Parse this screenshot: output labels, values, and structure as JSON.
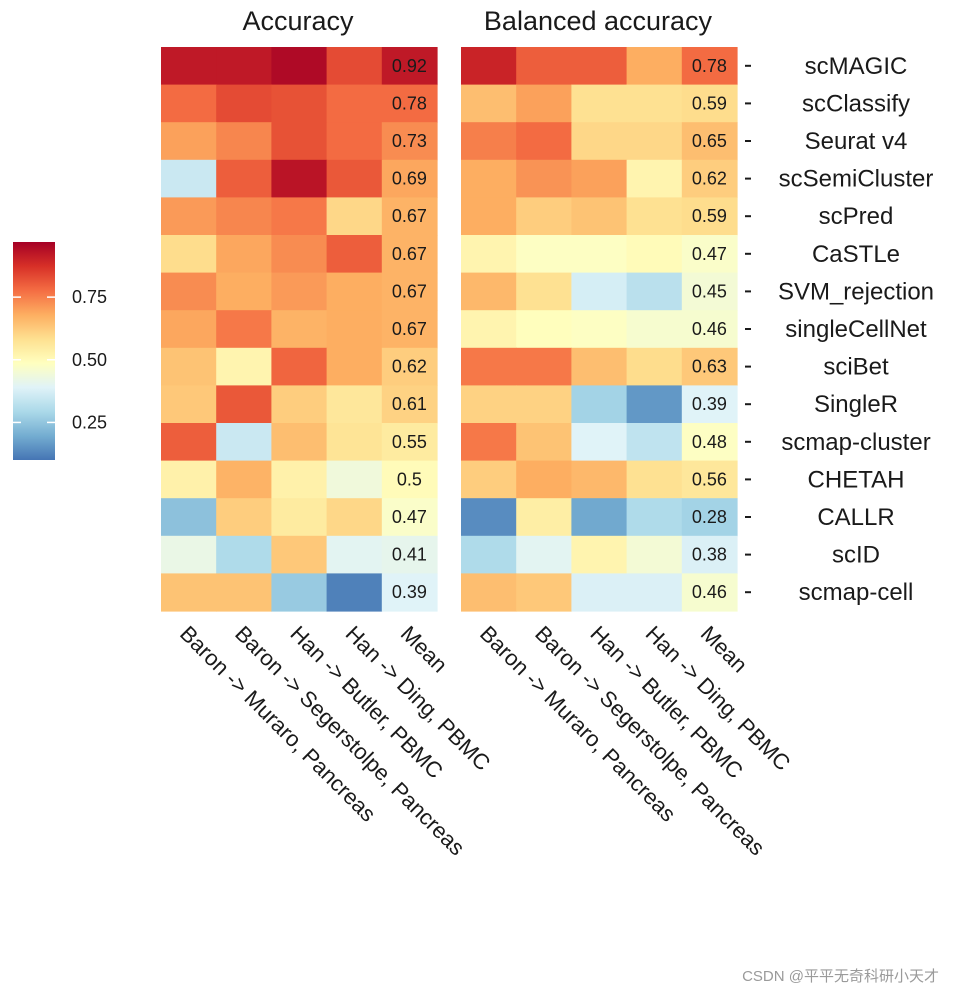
{
  "chart_data": {
    "type": "heatmap",
    "panels": [
      {
        "title": "Accuracy",
        "columns": [
          "Baron -> Muraro, Pancreas",
          "Baron -> Segerstolpe, Pancreas",
          "Han -> Butler, PBMC",
          "Han -> Ding, PBMC",
          "Mean"
        ],
        "values": [
          [
            0.92,
            0.92,
            0.95,
            0.83,
            0.92
          ],
          [
            0.78,
            0.83,
            0.82,
            0.78,
            0.78
          ],
          [
            0.7,
            0.74,
            0.82,
            0.78,
            0.73
          ],
          [
            0.35,
            0.8,
            0.93,
            0.81,
            0.69
          ],
          [
            0.71,
            0.74,
            0.76,
            0.6,
            0.67
          ],
          [
            0.59,
            0.69,
            0.73,
            0.8,
            0.67
          ],
          [
            0.73,
            0.68,
            0.71,
            0.68,
            0.67
          ],
          [
            0.69,
            0.76,
            0.67,
            0.68,
            0.67
          ],
          [
            0.64,
            0.52,
            0.79,
            0.68,
            0.62
          ],
          [
            0.63,
            0.81,
            0.62,
            0.56,
            0.61
          ],
          [
            0.8,
            0.35,
            0.65,
            0.57,
            0.55
          ],
          [
            0.53,
            0.67,
            0.53,
            0.44,
            0.5
          ],
          [
            0.24,
            0.62,
            0.55,
            0.6,
            0.47
          ],
          [
            0.42,
            0.3,
            0.63,
            0.4,
            0.41
          ],
          [
            0.64,
            0.64,
            0.26,
            0.12,
            0.39
          ]
        ],
        "labels": [
          "0.92",
          "0.78",
          "0.73",
          "0.69",
          "0.67",
          "0.67",
          "0.67",
          "0.67",
          "0.62",
          "0.61",
          "0.55",
          "0.5",
          "0.47",
          "0.41",
          "0.39"
        ]
      },
      {
        "title": "Balanced accuracy",
        "columns": [
          "Baron -> Muraro, Pancreas",
          "Baron -> Segerstolpe, Pancreas",
          "Han -> Butler, PBMC",
          "Han -> Ding, PBMC",
          "Mean"
        ],
        "values": [
          [
            0.9,
            0.8,
            0.8,
            0.68,
            0.78
          ],
          [
            0.65,
            0.7,
            0.58,
            0.58,
            0.59
          ],
          [
            0.75,
            0.78,
            0.6,
            0.6,
            0.65
          ],
          [
            0.68,
            0.72,
            0.7,
            0.52,
            0.62
          ],
          [
            0.68,
            0.62,
            0.64,
            0.58,
            0.59
          ],
          [
            0.52,
            0.48,
            0.48,
            0.5,
            0.47
          ],
          [
            0.66,
            0.58,
            0.37,
            0.32,
            0.45
          ],
          [
            0.52,
            0.49,
            0.48,
            0.46,
            0.46
          ],
          [
            0.76,
            0.76,
            0.65,
            0.59,
            0.63
          ],
          [
            0.61,
            0.61,
            0.28,
            0.16,
            0.39
          ],
          [
            0.76,
            0.64,
            0.39,
            0.33,
            0.48
          ],
          [
            0.62,
            0.68,
            0.66,
            0.58,
            0.56
          ],
          [
            0.14,
            0.54,
            0.19,
            0.3,
            0.28
          ],
          [
            0.3,
            0.4,
            0.52,
            0.45,
            0.38
          ],
          [
            0.65,
            0.63,
            0.38,
            0.38,
            0.46
          ]
        ],
        "labels": [
          "0.78",
          "0.59",
          "0.65",
          "0.62",
          "0.59",
          "0.47",
          "0.45",
          "0.46",
          "0.63",
          "0.39",
          "0.48",
          "0.56",
          "0.28",
          "0.38",
          "0.46"
        ]
      }
    ],
    "rows": [
      "scMAGIC",
      "scClassify",
      "Seurat v4",
      "scSemiCluster",
      "scPred",
      "CaSTLe",
      "SVM_rejection",
      "singleCellNet",
      "sciBet",
      "SingleR",
      "scmap-cluster",
      "CHETAH",
      "CALLR",
      "scID",
      "scmap-cell"
    ],
    "legend": {
      "ticks": [
        "0.75",
        "0.50",
        "0.25"
      ],
      "tick_values": [
        0.75,
        0.5,
        0.25
      ],
      "range": [
        0.1,
        0.97
      ]
    },
    "color_scale": [
      "#4575b4",
      "#74add1",
      "#abd9e9",
      "#e0f3f8",
      "#ffffbf",
      "#fee090",
      "#fdae61",
      "#f46d43",
      "#d73027",
      "#a50026"
    ]
  },
  "watermark": "CSDN @平平无奇科研小天才"
}
